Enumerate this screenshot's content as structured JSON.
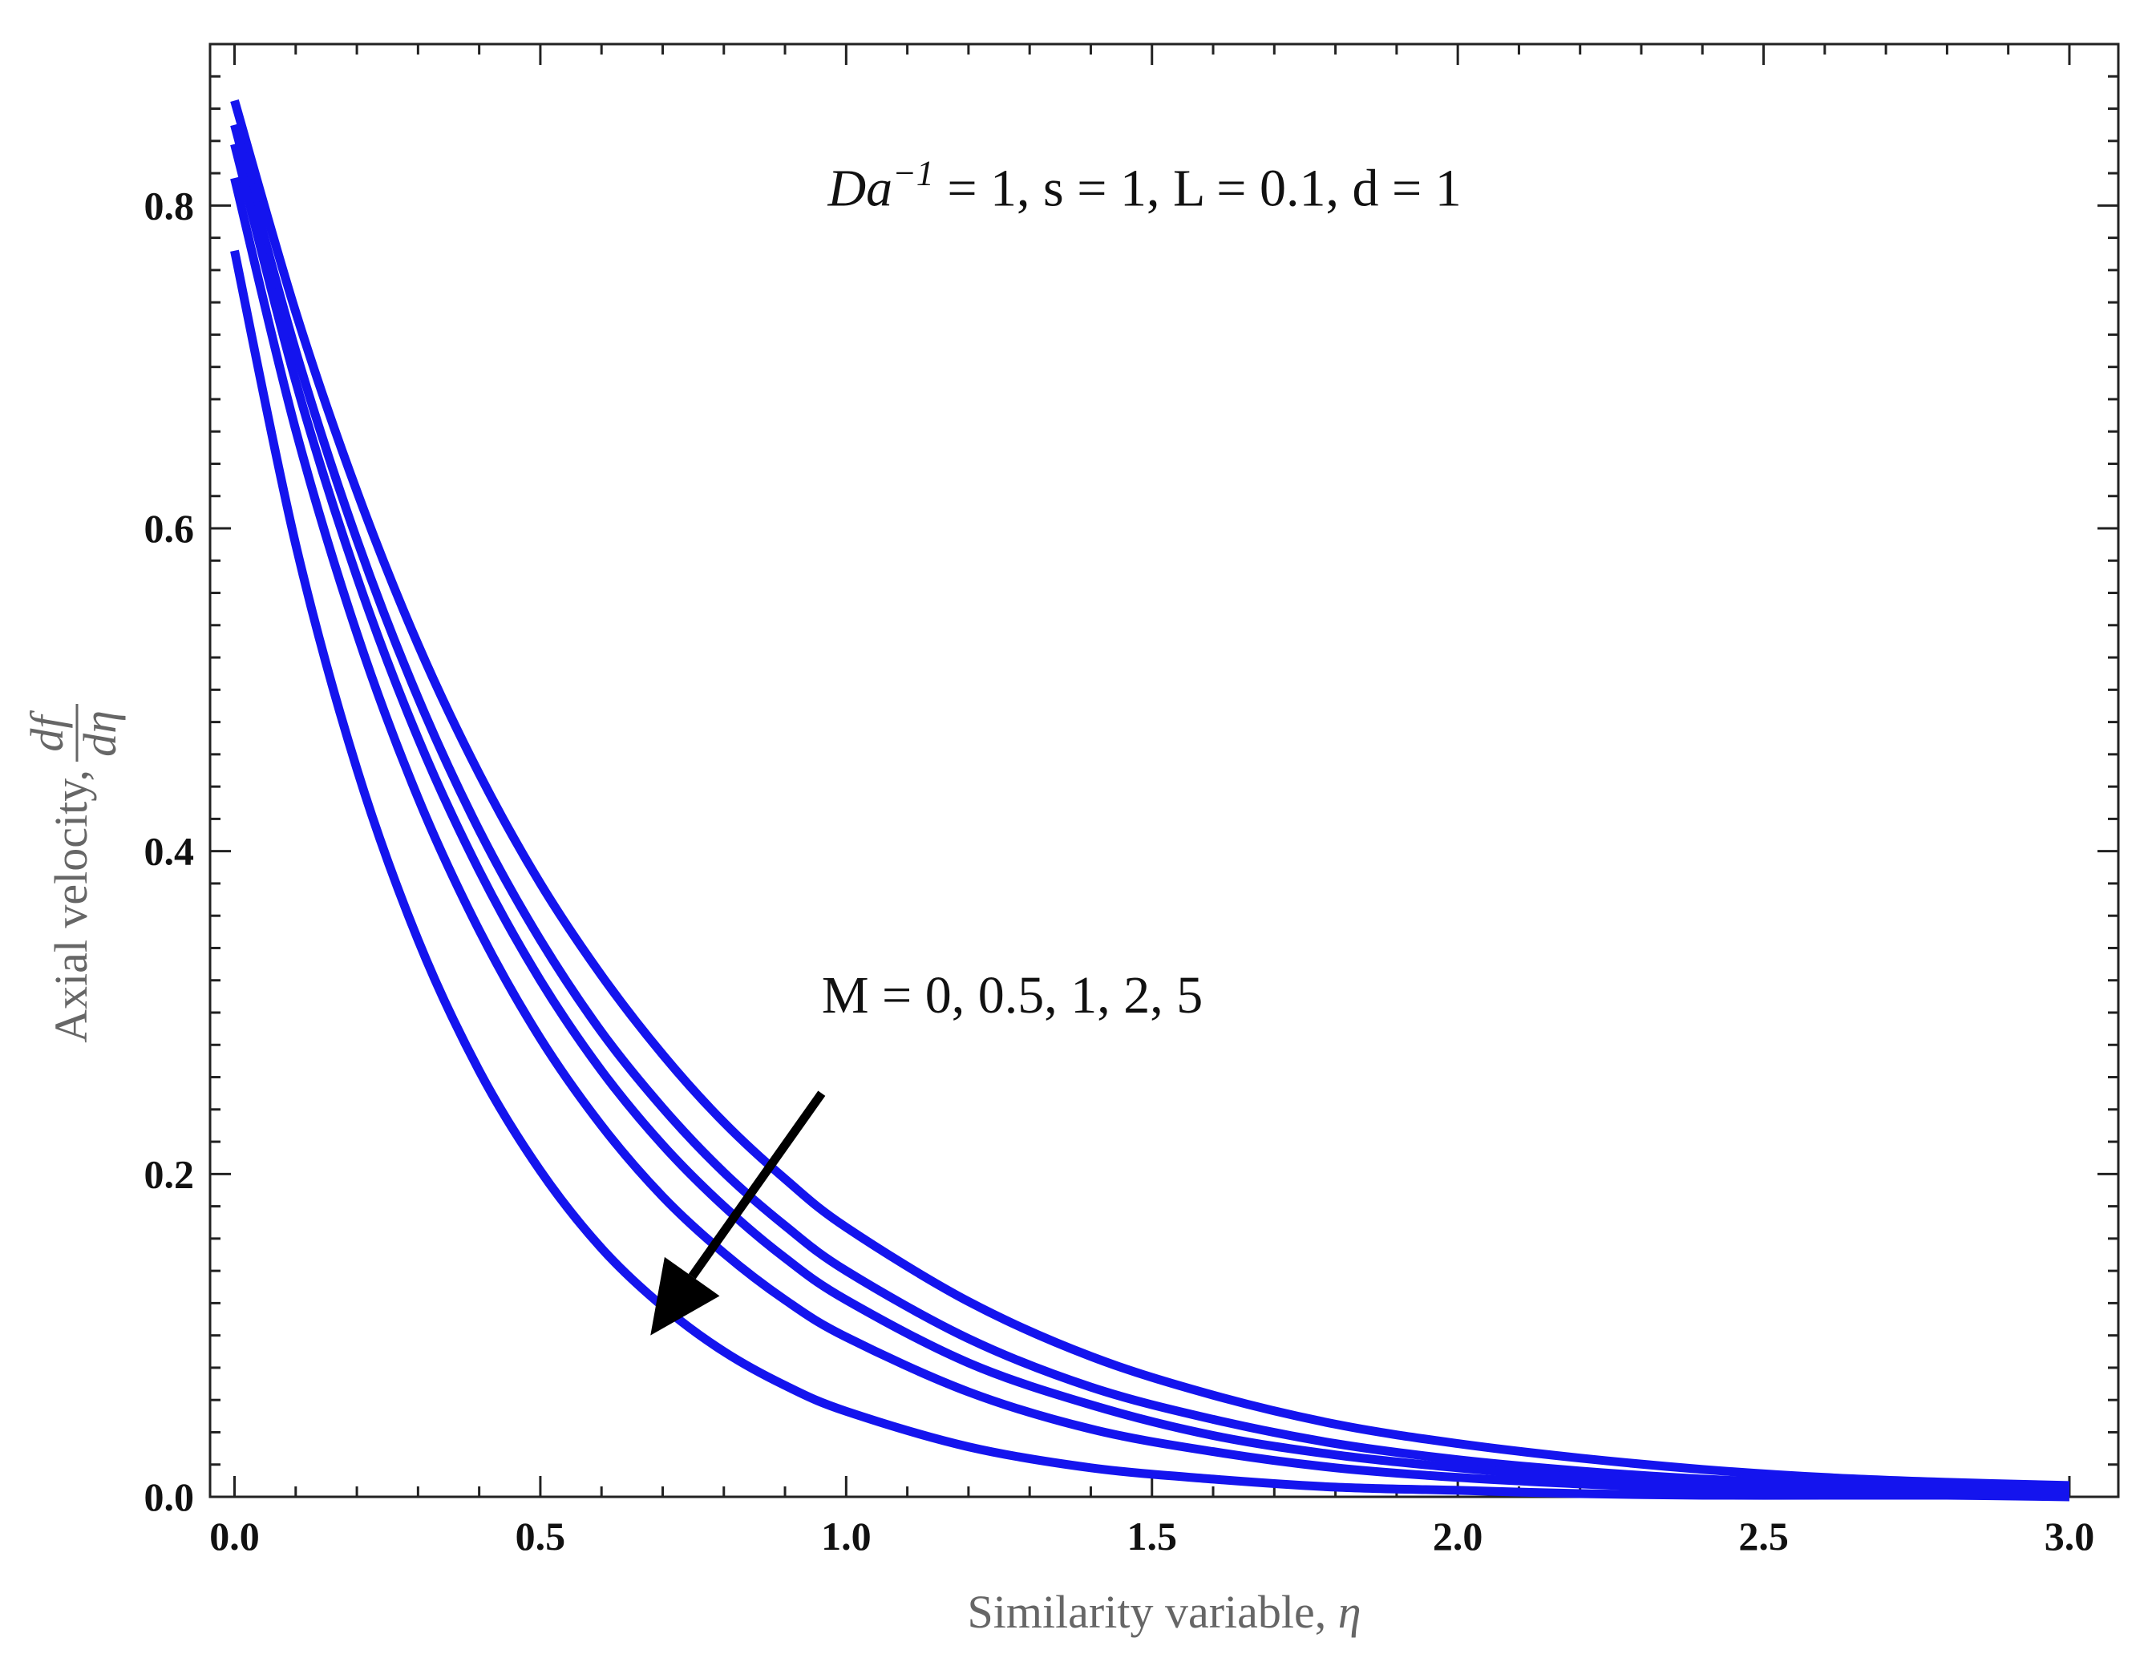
{
  "chart_data": {
    "type": "line",
    "xlabel": "Similarity variable, ",
    "xlabel_symbol": "η",
    "ylabel": "Axial velocity, ",
    "ylabel_frac_num": "df",
    "ylabel_frac_den": "dη",
    "xlim": [
      -0.04,
      3.08
    ],
    "ylim": [
      0.0,
      0.9
    ],
    "x_ticks": [
      "0.0",
      "0.5",
      "1.0",
      "1.5",
      "2.0",
      "2.5",
      "3.0"
    ],
    "x_tick_values": [
      0,
      0.5,
      1.0,
      1.5,
      2.0,
      2.5,
      3.0
    ],
    "y_ticks": [
      "0.0",
      "0.2",
      "0.4",
      "0.6",
      "0.8"
    ],
    "y_tick_values": [
      0,
      0.2,
      0.4,
      0.6,
      0.8
    ],
    "grid": false,
    "line_color": "#1414ee",
    "arrow_color": "#000000",
    "x": [
      0,
      0.1,
      0.2,
      0.3,
      0.4,
      0.5,
      0.6,
      0.7,
      0.8,
      0.9,
      1.0,
      1.2,
      1.4,
      1.6,
      1.8,
      2.0,
      2.2,
      2.4,
      2.6,
      2.8,
      3.0
    ],
    "series": [
      {
        "values": [
          0.865,
          0.734,
          0.623,
          0.528,
          0.448,
          0.38,
          0.323,
          0.274,
          0.232,
          0.197,
          0.167,
          0.121,
          0.087,
          0.063,
          0.045,
          0.033,
          0.024,
          0.017,
          0.012,
          0.009,
          0.007
        ]
      },
      {
        "values": [
          0.85,
          0.71,
          0.593,
          0.495,
          0.413,
          0.345,
          0.288,
          0.241,
          0.201,
          0.168,
          0.14,
          0.098,
          0.068,
          0.048,
          0.033,
          0.023,
          0.016,
          0.011,
          0.008,
          0.005,
          0.004
        ]
      },
      {
        "values": [
          0.838,
          0.691,
          0.57,
          0.47,
          0.388,
          0.32,
          0.264,
          0.218,
          0.18,
          0.148,
          0.122,
          0.083,
          0.057,
          0.038,
          0.026,
          0.018,
          0.012,
          0.008,
          0.006,
          0.004,
          0.003
        ]
      },
      {
        "values": [
          0.817,
          0.661,
          0.535,
          0.433,
          0.351,
          0.284,
          0.23,
          0.186,
          0.151,
          0.122,
          0.099,
          0.065,
          0.042,
          0.028,
          0.018,
          0.012,
          0.008,
          0.005,
          0.003,
          0.002,
          0.002
        ]
      },
      {
        "values": [
          0.772,
          0.59,
          0.451,
          0.345,
          0.264,
          0.202,
          0.154,
          0.118,
          0.09,
          0.069,
          0.053,
          0.031,
          0.018,
          0.011,
          0.006,
          0.004,
          0.002,
          0.001,
          0.001,
          0.001,
          0.0
        ]
      }
    ],
    "annotations": {
      "params_prefix": "Da",
      "params_sup": "−1",
      "params_rest": " = 1,  s = 1,  L = 0.1, d = 1",
      "params_position": [
        0.97,
        0.8
      ],
      "m_label": "M = 0, 0.5, 1, 2, 5",
      "m_label_position": [
        0.96,
        0.3
      ],
      "arrow_from": [
        0.96,
        0.25
      ],
      "arrow_to": [
        0.68,
        0.1
      ]
    }
  }
}
